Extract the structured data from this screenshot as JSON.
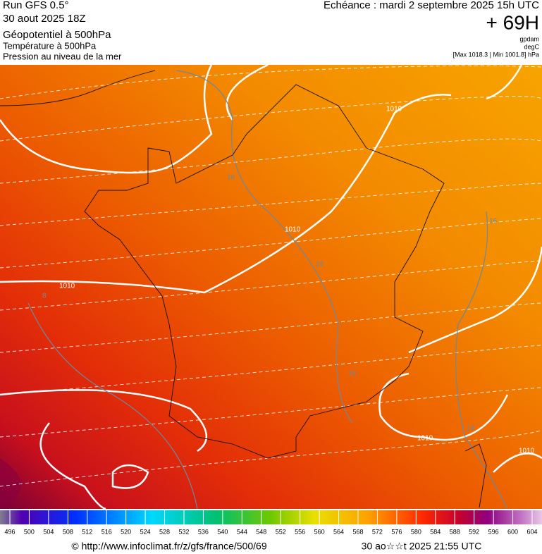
{
  "header": {
    "run": "Run GFS 0.5°",
    "date": "30 aout 2025 18Z",
    "field1": "Géopotentiel à 500hPa",
    "field2": "Température à 500hPa",
    "field3": "Pression au niveau de la mer",
    "echeance": "Echéance : mardi 2 septembre 2025 15h UTC",
    "offset": "+ 69H",
    "unit1": "gpdam",
    "unit2": "degC",
    "range": "[Max 1018.3 | Min 1001.8] hPa"
  },
  "map": {
    "contour_labels": [
      "1010",
      "1010",
      "1010",
      "1010",
      "1010",
      "16",
      "16",
      "16",
      "16",
      "16",
      "8"
    ]
  },
  "colorbar": {
    "labels": [
      496,
      500,
      504,
      508,
      512,
      516,
      520,
      524,
      528,
      532,
      536,
      540,
      544,
      548,
      552,
      556,
      560,
      564,
      568,
      572,
      576,
      580,
      584,
      588,
      592,
      596,
      600,
      604
    ]
  },
  "footer": {
    "url": "© http://www.infoclimat.fr/z/gfs/france/500/69",
    "timestamp": "30 ao☆☆t 2025 21:55 UTC"
  }
}
